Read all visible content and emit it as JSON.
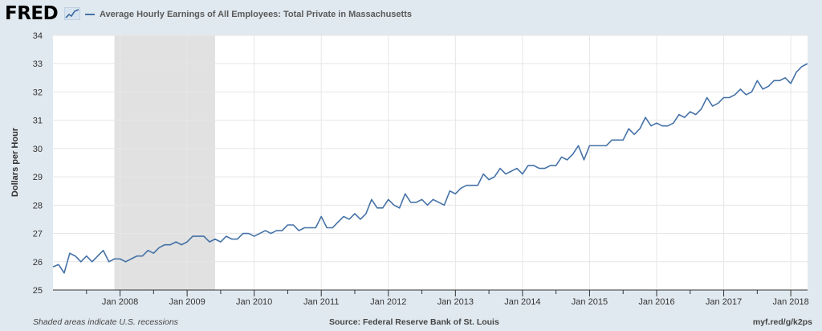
{
  "header": {
    "logo_text": "FRED",
    "logo_icon": "trend-chart-icon",
    "legend_label": "Average Hourly Earnings of All Employees: Total Private in Massachusetts",
    "series_color": "#4572a7"
  },
  "footer": {
    "note": "Shaded areas indicate U.S. recessions",
    "source": "Source: Federal Reserve Bank of St. Louis",
    "link": "myf.red/g/k2ps"
  },
  "chart_data": {
    "type": "line",
    "title": "",
    "xlabel": "",
    "ylabel": "Dollars per Hour",
    "ylim": [
      25,
      34
    ],
    "yticks": [
      25,
      26,
      27,
      28,
      29,
      30,
      31,
      32,
      33,
      34
    ],
    "xticks": [
      "Jan 2008",
      "Jan 2009",
      "Jan 2010",
      "Jan 2011",
      "Jan 2012",
      "Jan 2013",
      "Jan 2014",
      "Jan 2015",
      "Jan 2016",
      "Jan 2017",
      "Jan 2018"
    ],
    "x_start": "2007-01",
    "x_end": "2018-04",
    "grid": true,
    "recession": {
      "start": "2007-12",
      "end": "2009-06"
    },
    "series": [
      {
        "name": "Average Hourly Earnings of All Employees: Total Private in Massachusetts",
        "color": "#4572a7",
        "values": [
          25.82,
          25.9,
          25.6,
          26.3,
          26.2,
          26.0,
          26.2,
          26.0,
          26.2,
          26.4,
          26.0,
          26.1,
          26.1,
          26.0,
          26.1,
          26.2,
          26.2,
          26.4,
          26.3,
          26.5,
          26.6,
          26.6,
          26.7,
          26.6,
          26.7,
          26.9,
          26.9,
          26.9,
          26.7,
          26.8,
          26.7,
          26.9,
          26.8,
          26.8,
          27.0,
          27.0,
          26.9,
          27.0,
          27.1,
          27.0,
          27.1,
          27.1,
          27.3,
          27.3,
          27.1,
          27.2,
          27.2,
          27.2,
          27.6,
          27.2,
          27.2,
          27.4,
          27.6,
          27.5,
          27.7,
          27.5,
          27.7,
          28.2,
          27.9,
          27.9,
          28.2,
          28.0,
          27.9,
          28.4,
          28.1,
          28.1,
          28.2,
          28.0,
          28.2,
          28.1,
          28.0,
          28.5,
          28.4,
          28.6,
          28.7,
          28.7,
          28.7,
          29.1,
          28.9,
          29.0,
          29.3,
          29.1,
          29.2,
          29.3,
          29.1,
          29.4,
          29.4,
          29.3,
          29.3,
          29.4,
          29.4,
          29.7,
          29.6,
          29.8,
          30.1,
          29.6,
          30.1,
          30.1,
          30.1,
          30.1,
          30.3,
          30.3,
          30.3,
          30.7,
          30.5,
          30.7,
          31.1,
          30.8,
          30.9,
          30.8,
          30.8,
          30.9,
          31.2,
          31.1,
          31.3,
          31.2,
          31.4,
          31.8,
          31.5,
          31.6,
          31.8,
          31.8,
          31.9,
          32.1,
          31.9,
          32.0,
          32.4,
          32.1,
          32.2,
          32.4,
          32.4,
          32.5,
          32.3,
          32.7,
          32.9,
          33.0
        ]
      }
    ]
  }
}
